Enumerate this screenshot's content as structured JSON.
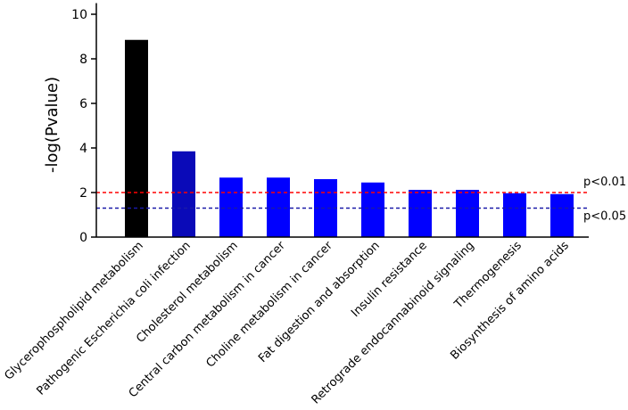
{
  "chart_data": {
    "type": "bar",
    "ylabel": "-log(Pvalue)",
    "ylim": [
      0,
      10.5
    ],
    "yticks": [
      0,
      2,
      4,
      6,
      8,
      10
    ],
    "grid": false,
    "categories": [
      "Glycerophospholipid metabolism",
      "Pathogenic Escherichia coli infection",
      "Cholesterol metabolism",
      "Central carbon metabolism in cancer",
      "Choline metabolism in cancer",
      "Fat digestion and absorption",
      "Insulin resistance",
      "Retrograde endocannabinoid signaling",
      "Thermogenesis",
      "Biosynthesis of amino acids"
    ],
    "values": [
      8.85,
      3.85,
      2.67,
      2.67,
      2.6,
      2.45,
      2.12,
      2.12,
      1.97,
      1.93
    ],
    "bar_colors": [
      "#000000",
      "#0a0ab8",
      "#0000ff",
      "#0000ff",
      "#0000ff",
      "#0000ff",
      "#0000ff",
      "#0000ff",
      "#0000ff",
      "#0000ff"
    ],
    "thresholds": [
      {
        "label": "p<0.01",
        "value": 2.0,
        "color": "#ff0000"
      },
      {
        "label": "p<0.05",
        "value": 1.3,
        "color": "#1a1aa8"
      }
    ]
  }
}
